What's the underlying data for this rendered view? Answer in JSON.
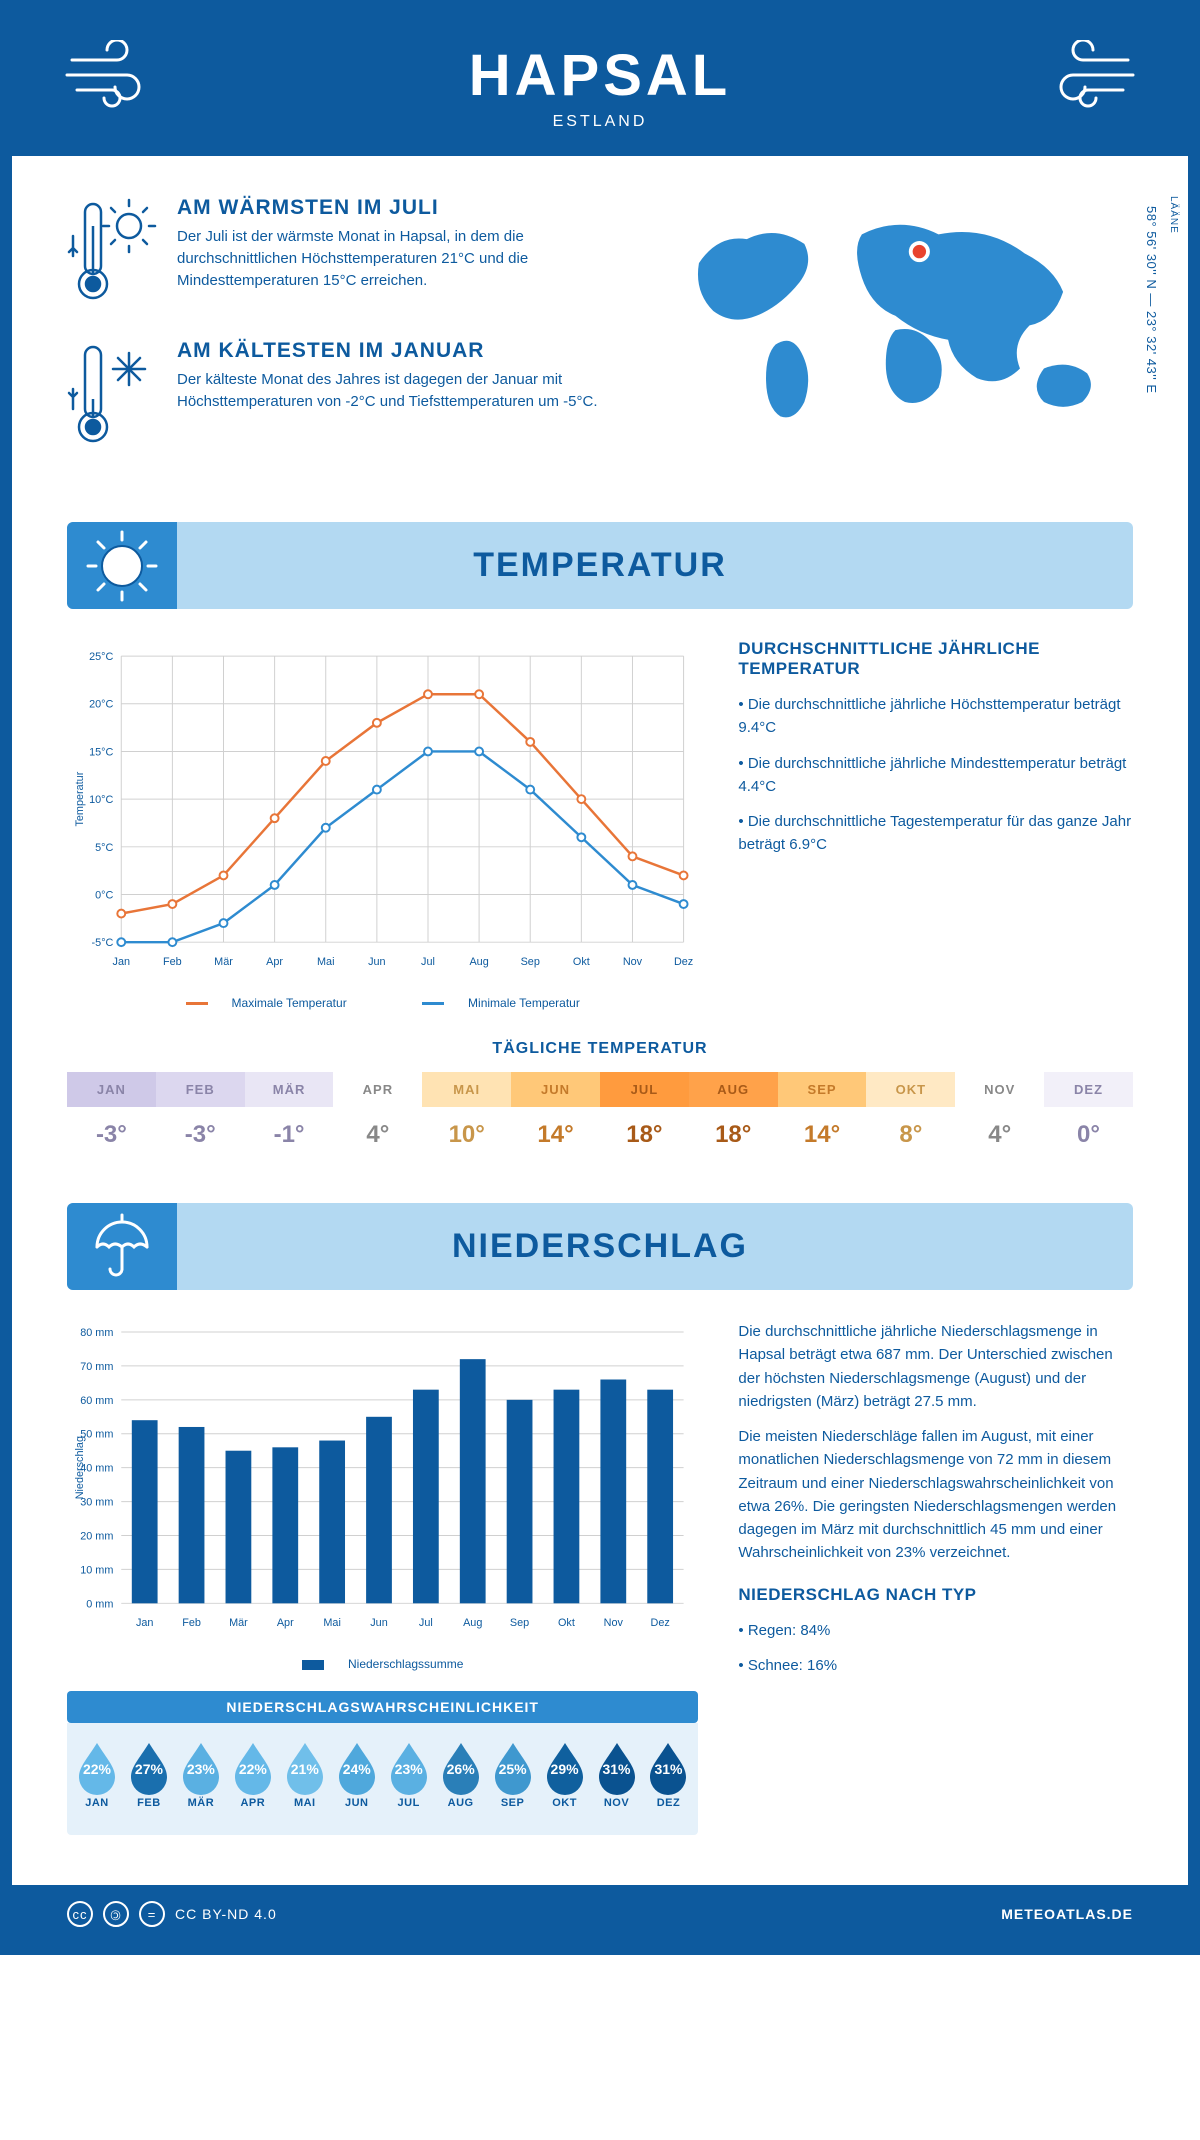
{
  "header": {
    "city": "HAPSAL",
    "country": "ESTLAND"
  },
  "coords": "58° 56' 30'' N — 23° 32' 43'' E",
  "region": "LÄÄNE",
  "facts": {
    "warm": {
      "title": "AM WÄRMSTEN IM JULI",
      "body": "Der Juli ist der wärmste Monat in Hapsal, in dem die durchschnittlichen Höchsttemperaturen 21°C und die Mindesttemperaturen 15°C erreichen."
    },
    "cold": {
      "title": "AM KÄLTESTEN IM JANUAR",
      "body": "Der kälteste Monat des Jahres ist dagegen der Januar mit Höchsttemperaturen von -2°C und Tiefsttemperaturen um -5°C."
    }
  },
  "temperature": {
    "banner": "TEMPERATUR",
    "chart": {
      "months": [
        "Jan",
        "Feb",
        "Mär",
        "Apr",
        "Mai",
        "Jun",
        "Jul",
        "Aug",
        "Sep",
        "Okt",
        "Nov",
        "Dez"
      ],
      "max": [
        -2,
        -1,
        2,
        8,
        14,
        18,
        21,
        21,
        16,
        10,
        4,
        2
      ],
      "min": [
        -5,
        -5,
        -3,
        1,
        7,
        11,
        15,
        15,
        11,
        6,
        1,
        -1
      ],
      "ylim": [
        -5,
        25
      ],
      "ytick_step": 5,
      "ylabel": "Temperatur",
      "max_color": "#e87538",
      "min_color": "#2e8bd0",
      "grid_color": "#d0d0d0",
      "line_width": 2.5,
      "marker": "circle"
    },
    "legend_max": "Maximale Temperatur",
    "legend_min": "Minimale Temperatur",
    "side_title": "DURCHSCHNITTLICHE JÄHRLICHE TEMPERATUR",
    "side_points": [
      "Die durchschnittliche jährliche Höchsttemperatur beträgt 9.4°C",
      "Die durchschnittliche jährliche Mindesttemperatur beträgt 4.4°C",
      "Die durchschnittliche Tagestemperatur für das ganze Jahr beträgt 6.9°C"
    ],
    "daily_title": "TÄGLICHE TEMPERATUR",
    "daily": {
      "months": [
        "JAN",
        "FEB",
        "MÄR",
        "APR",
        "MAI",
        "JUN",
        "JUL",
        "AUG",
        "SEP",
        "OKT",
        "NOV",
        "DEZ"
      ],
      "values": [
        "-3°",
        "-3°",
        "-1°",
        "4°",
        "10°",
        "14°",
        "18°",
        "18°",
        "14°",
        "8°",
        "4°",
        "0°"
      ],
      "header_colors": [
        "#cfc9e8",
        "#dcd7ef",
        "#e9e6f5",
        "#ffffff",
        "#ffe3b3",
        "#ffc878",
        "#ff9b3e",
        "#ffa24a",
        "#ffc878",
        "#ffe9c4",
        "#ffffff",
        "#f2f0f9"
      ],
      "text_colors": [
        "#8a84a8",
        "#8a84a8",
        "#8a84a8",
        "#888",
        "#c8964a",
        "#c47a2a",
        "#a85a18",
        "#a85a18",
        "#c47a2a",
        "#c8964a",
        "#888",
        "#8a84a8"
      ]
    }
  },
  "precip": {
    "banner": "NIEDERSCHLAG",
    "chart": {
      "months": [
        "Jan",
        "Feb",
        "Mär",
        "Apr",
        "Mai",
        "Jun",
        "Jul",
        "Aug",
        "Sep",
        "Okt",
        "Nov",
        "Dez"
      ],
      "values": [
        54,
        52,
        45,
        46,
        48,
        55,
        63,
        72,
        60,
        63,
        66,
        63
      ],
      "ylim": [
        0,
        80
      ],
      "ytick_step": 10,
      "ylabel": "Niederschlag",
      "bar_color": "#0d5a9e",
      "grid_color": "#d0d0d0",
      "bar_width": 0.55
    },
    "legend": "Niederschlagssumme",
    "para1": "Die durchschnittliche jährliche Niederschlagsmenge in Hapsal beträgt etwa 687 mm. Der Unterschied zwischen der höchsten Niederschlagsmenge (August) und der niedrigsten (März) beträgt 27.5 mm.",
    "para2": "Die meisten Niederschläge fallen im August, mit einer monatlichen Niederschlagsmenge von 72 mm in diesem Zeitraum und einer Niederschlagswahrscheinlichkeit von etwa 26%. Die geringsten Niederschlagsmengen werden dagegen im März mit durchschnittlich 45 mm und einer Wahrscheinlichkeit von 23% verzeichnet.",
    "type_title": "NIEDERSCHLAG NACH TYP",
    "type_points": [
      "Regen: 84%",
      "Schnee: 16%"
    ],
    "prob_title": "NIEDERSCHLAGSWAHRSCHEINLICHKEIT",
    "prob": {
      "months": [
        "JAN",
        "FEB",
        "MÄR",
        "APR",
        "MAI",
        "JUN",
        "JUL",
        "AUG",
        "SEP",
        "OKT",
        "NOV",
        "DEZ"
      ],
      "values": [
        "22%",
        "27%",
        "23%",
        "22%",
        "21%",
        "24%",
        "23%",
        "26%",
        "25%",
        "29%",
        "31%",
        "31%"
      ],
      "colors": [
        "#64b8e8",
        "#1a6fae",
        "#5ab0e2",
        "#64b8e8",
        "#70bfea",
        "#4fa8dc",
        "#5ab0e2",
        "#2a7fb8",
        "#3f98cf",
        "#10609e",
        "#0a5290",
        "#0a5290"
      ]
    }
  },
  "footer": {
    "license": "CC BY-ND 4.0",
    "site": "METEOATLAS.DE"
  },
  "colors": {
    "brand": "#0d5a9e",
    "banner_bg": "#b3d9f2",
    "banner_tab": "#2e8bd0"
  }
}
